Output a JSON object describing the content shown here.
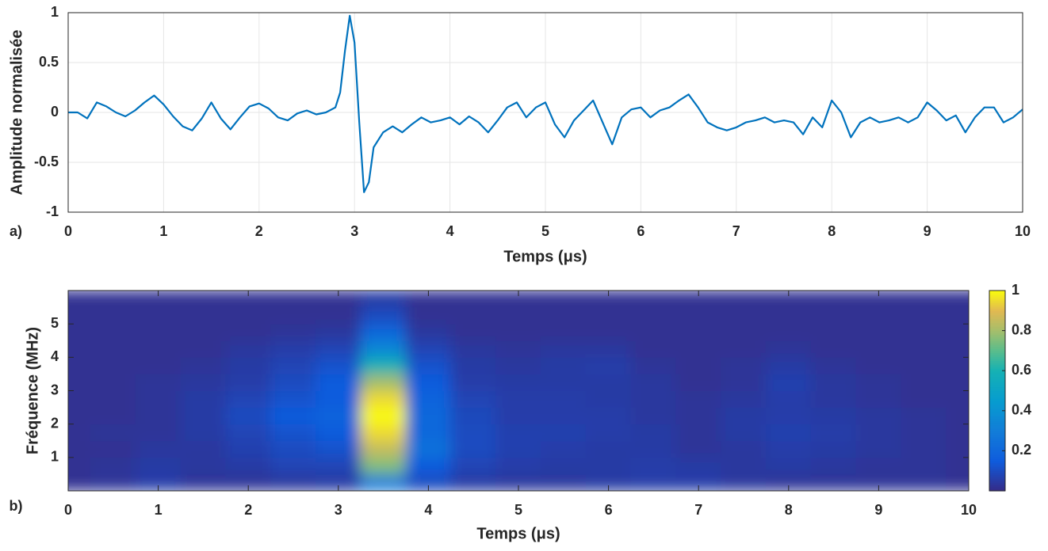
{
  "chart_data": [
    {
      "type": "line",
      "panel_label": "a)",
      "xlabel": "Temps (μs)",
      "ylabel": "Amplitude normalisée",
      "color": "#0072bd",
      "grid": true,
      "xlim": [
        0,
        10
      ],
      "ylim": [
        -1,
        1
      ],
      "xticks": [
        0,
        1,
        2,
        3,
        4,
        5,
        6,
        7,
        8,
        9,
        10
      ],
      "yticks": [
        -1,
        -0.5,
        0,
        0.5,
        1
      ],
      "x": [
        0,
        0.1,
        0.2,
        0.3,
        0.4,
        0.5,
        0.6,
        0.7,
        0.8,
        0.9,
        1,
        1.1,
        1.2,
        1.3,
        1.4,
        1.5,
        1.6,
        1.7,
        1.8,
        1.9,
        2,
        2.1,
        2.2,
        2.3,
        2.4,
        2.5,
        2.6,
        2.7,
        2.8,
        2.85,
        2.9,
        2.95,
        3,
        3.05,
        3.1,
        3.15,
        3.2,
        3.3,
        3.4,
        3.5,
        3.6,
        3.7,
        3.8,
        3.9,
        4,
        4.1,
        4.2,
        4.3,
        4.4,
        4.5,
        4.6,
        4.7,
        4.8,
        4.9,
        5,
        5.1,
        5.2,
        5.3,
        5.4,
        5.5,
        5.6,
        5.7,
        5.8,
        5.9,
        6,
        6.1,
        6.2,
        6.3,
        6.4,
        6.5,
        6.6,
        6.7,
        6.8,
        6.9,
        7,
        7.1,
        7.2,
        7.3,
        7.4,
        7.5,
        7.6,
        7.7,
        7.8,
        7.9,
        8,
        8.1,
        8.2,
        8.3,
        8.4,
        8.5,
        8.6,
        8.7,
        8.8,
        8.9,
        9,
        9.1,
        9.2,
        9.3,
        9.4,
        9.5,
        9.6,
        9.7,
        9.8,
        9.9,
        10
      ],
      "values": [
        0,
        0,
        -0.06,
        0.1,
        0.06,
        0,
        -0.04,
        0.02,
        0.1,
        0.17,
        0.08,
        -0.04,
        -0.14,
        -0.18,
        -0.06,
        0.1,
        -0.06,
        -0.17,
        -0.05,
        0.06,
        0.09,
        0.04,
        -0.05,
        -0.08,
        -0.01,
        0.02,
        -0.02,
        0,
        0.05,
        0.2,
        0.62,
        0.97,
        0.7,
        -0.1,
        -0.8,
        -0.7,
        -0.35,
        -0.2,
        -0.14,
        -0.2,
        -0.12,
        -0.05,
        -0.1,
        -0.08,
        -0.05,
        -0.12,
        -0.04,
        -0.1,
        -0.2,
        -0.08,
        0.05,
        0.1,
        -0.05,
        0.05,
        0.1,
        -0.12,
        -0.25,
        -0.08,
        0.02,
        0.12,
        -0.1,
        -0.32,
        -0.05,
        0.03,
        0.05,
        -0.05,
        0.02,
        0.05,
        0.12,
        0.18,
        0.05,
        -0.1,
        -0.15,
        -0.18,
        -0.15,
        -0.1,
        -0.08,
        -0.05,
        -0.1,
        -0.08,
        -0.1,
        -0.22,
        -0.05,
        -0.15,
        0.12,
        0,
        -0.25,
        -0.1,
        -0.05,
        -0.1,
        -0.08,
        -0.05,
        -0.1,
        -0.05,
        0.1,
        0.02,
        -0.08,
        -0.03,
        -0.2,
        -0.05,
        0.05,
        0.05,
        -0.1,
        -0.05,
        0.03
      ]
    },
    {
      "type": "heatmap",
      "panel_label": "b)",
      "xlabel": "Temps (μs)",
      "ylabel": "Fréquence (MHz)",
      "colormap": "parula",
      "xlim": [
        0,
        10
      ],
      "ylim": [
        0,
        6
      ],
      "xticks": [
        0,
        1,
        2,
        3,
        4,
        5,
        6,
        7,
        8,
        9,
        10
      ],
      "yticks": [
        1,
        2,
        3,
        4,
        5
      ],
      "clim": [
        0,
        1
      ],
      "cticks": [
        0.2,
        0.4,
        0.6,
        0.8,
        1
      ],
      "x": [
        0,
        0.5,
        1,
        1.5,
        2,
        2.5,
        3,
        3.5,
        4,
        4.5,
        5,
        5.5,
        6,
        6.5,
        7,
        7.5,
        8,
        8.5,
        9,
        9.5,
        10
      ],
      "y": [
        0.25,
        0.75,
        1.25,
        1.75,
        2.25,
        2.75,
        3.25,
        3.75,
        4.25,
        4.75,
        5.25,
        5.75
      ],
      "z": [
        [
          0.02,
          0.03,
          0.06,
          0.03,
          0.03,
          0.04,
          0.05,
          0.3,
          0.1,
          0.05,
          0.04,
          0.04,
          0.05,
          0.06,
          0.06,
          0.04,
          0.03,
          0.03,
          0.03,
          0.03,
          0.02
        ],
        [
          0.02,
          0.03,
          0.05,
          0.04,
          0.05,
          0.08,
          0.08,
          0.75,
          0.15,
          0.08,
          0.06,
          0.05,
          0.05,
          0.06,
          0.05,
          0.04,
          0.05,
          0.04,
          0.03,
          0.03,
          0.02
        ],
        [
          0.02,
          0.02,
          0.04,
          0.04,
          0.07,
          0.1,
          0.12,
          0.85,
          0.25,
          0.1,
          0.07,
          0.06,
          0.05,
          0.05,
          0.03,
          0.04,
          0.06,
          0.05,
          0.04,
          0.03,
          0.02
        ],
        [
          0.02,
          0.03,
          0.03,
          0.05,
          0.08,
          0.12,
          0.15,
          0.95,
          0.2,
          0.1,
          0.07,
          0.07,
          0.06,
          0.05,
          0.03,
          0.05,
          0.07,
          0.06,
          0.04,
          0.03,
          0.02
        ],
        [
          0.02,
          0.02,
          0.03,
          0.05,
          0.1,
          0.15,
          0.18,
          1,
          0.2,
          0.09,
          0.06,
          0.06,
          0.06,
          0.04,
          0.03,
          0.05,
          0.06,
          0.05,
          0.04,
          0.03,
          0.02
        ],
        [
          0.02,
          0.02,
          0.03,
          0.05,
          0.08,
          0.12,
          0.15,
          0.95,
          0.18,
          0.08,
          0.06,
          0.06,
          0.05,
          0.04,
          0.03,
          0.04,
          0.06,
          0.04,
          0.03,
          0.02,
          0.02
        ],
        [
          0.02,
          0.02,
          0.03,
          0.04,
          0.06,
          0.1,
          0.15,
          0.8,
          0.15,
          0.06,
          0.05,
          0.05,
          0.05,
          0.04,
          0.02,
          0.03,
          0.07,
          0.04,
          0.03,
          0.02,
          0.02
        ],
        [
          0.02,
          0.02,
          0.02,
          0.03,
          0.05,
          0.08,
          0.12,
          0.6,
          0.12,
          0.05,
          0.04,
          0.05,
          0.06,
          0.03,
          0.02,
          0.03,
          0.05,
          0.03,
          0.02,
          0.02,
          0.02
        ],
        [
          0.02,
          0.02,
          0.02,
          0.02,
          0.04,
          0.06,
          0.08,
          0.35,
          0.08,
          0.04,
          0.03,
          0.04,
          0.04,
          0.02,
          0.02,
          0.02,
          0.03,
          0.02,
          0.02,
          0.02,
          0.02
        ],
        [
          0.02,
          0.02,
          0.02,
          0.02,
          0.02,
          0.03,
          0.04,
          0.2,
          0.04,
          0.02,
          0.02,
          0.02,
          0.02,
          0.02,
          0.02,
          0.02,
          0.02,
          0.02,
          0.02,
          0.02,
          0.02
        ],
        [
          0.02,
          0.02,
          0.02,
          0.02,
          0.02,
          0.02,
          0.02,
          0.1,
          0.02,
          0.02,
          0.02,
          0.02,
          0.02,
          0.02,
          0.02,
          0.02,
          0.02,
          0.02,
          0.02,
          0.02,
          0.02
        ],
        [
          0.02,
          0.02,
          0.02,
          0.02,
          0.02,
          0.02,
          0.02,
          0.05,
          0.02,
          0.02,
          0.02,
          0.02,
          0.02,
          0.02,
          0.02,
          0.02,
          0.02,
          0.02,
          0.02,
          0.02,
          0.02
        ]
      ]
    }
  ]
}
